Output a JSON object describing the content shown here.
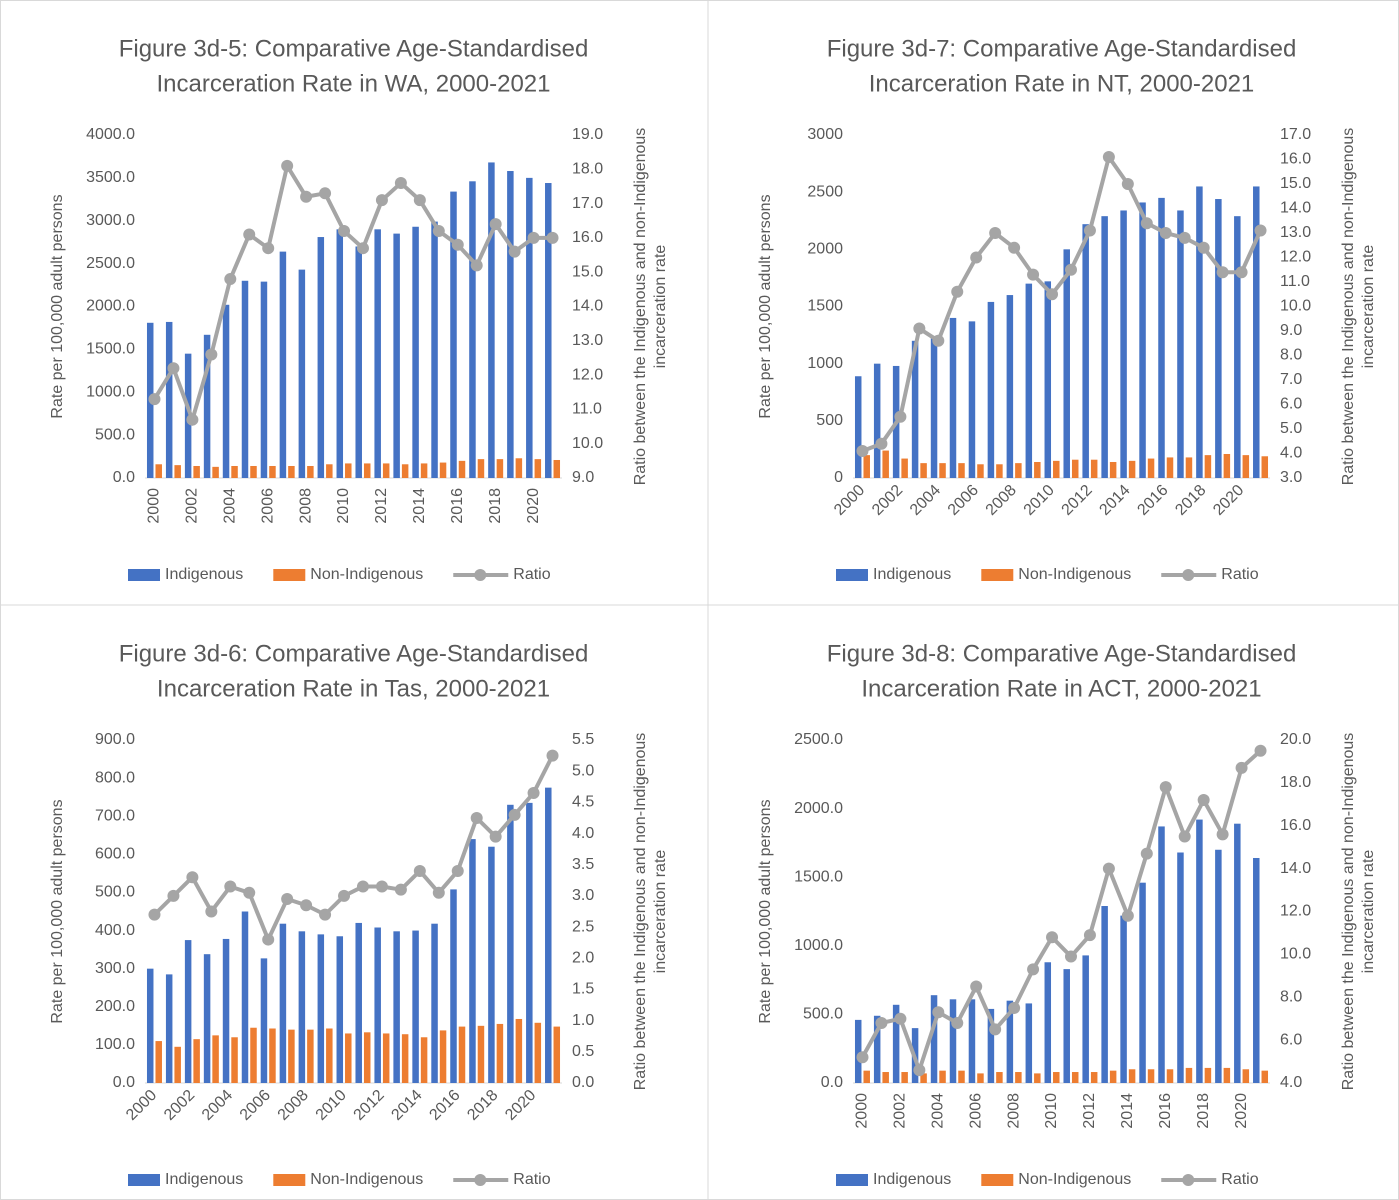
{
  "chart_data": [
    {
      "type": "bar",
      "title": [
        "Figure 3d-5: Comparative Age-Standardised",
        "Incarceration Rate in WA, 2000-2021"
      ],
      "y_label": "Rate per 100,000 adult persons",
      "y2_label": [
        "Ratio between the Indigenous and non-Indigenous",
        "incarceration rate"
      ],
      "categories": [
        "2000",
        null,
        "2002",
        null,
        "2004",
        null,
        "2006",
        null,
        "2008",
        null,
        "2010",
        null,
        "2012",
        null,
        "2014",
        null,
        "2016",
        null,
        "2018",
        null,
        "2020",
        null
      ],
      "series": [
        {
          "name": "Indigenous",
          "color": "#4472c4",
          "values": [
            1810,
            1820,
            1450,
            1670,
            2020,
            2300,
            2290,
            2640,
            2430,
            2810,
            2900,
            2700,
            2900,
            2850,
            2930,
            2990,
            3340,
            3460,
            3680,
            3580,
            3500,
            3440
          ]
        },
        {
          "name": "Non-Indigenous",
          "color": "#ed7d31",
          "values": [
            160,
            150,
            140,
            130,
            140,
            140,
            140,
            140,
            140,
            160,
            170,
            170,
            170,
            160,
            170,
            180,
            200,
            220,
            220,
            230,
            220,
            210
          ]
        },
        {
          "name": "Ratio",
          "color": "#a5a5a5",
          "type": "line",
          "axis": "y2",
          "values": [
            11.3,
            12.2,
            10.7,
            12.6,
            14.8,
            16.1,
            15.7,
            18.1,
            17.2,
            17.3,
            16.2,
            15.7,
            17.1,
            17.6,
            17.1,
            16.2,
            15.8,
            15.2,
            16.4,
            15.6,
            16.0,
            16.0
          ]
        }
      ],
      "ylim": [
        0,
        4000
      ],
      "yticks": [
        {
          "value": 0,
          "label": "0.0"
        },
        {
          "value": 500,
          "label": "500.0"
        },
        {
          "value": 1000,
          "label": "1000.0"
        },
        {
          "value": 1500,
          "label": "1500.0"
        },
        {
          "value": 2000,
          "label": "2000.0"
        },
        {
          "value": 2500,
          "label": "2500.0"
        },
        {
          "value": 3000,
          "label": "3000.0"
        },
        {
          "value": 3500,
          "label": "3500.0"
        },
        {
          "value": 4000,
          "label": "4000.0"
        }
      ],
      "y2lim": [
        9,
        19
      ],
      "y2ticks": [
        {
          "value": 9,
          "label": "9.0"
        },
        {
          "value": 10,
          "label": "10.0"
        },
        {
          "value": 11,
          "label": "11.0"
        },
        {
          "value": 12,
          "label": "12.0"
        },
        {
          "value": 13,
          "label": "13.0"
        },
        {
          "value": 14,
          "label": "14.0"
        },
        {
          "value": 15,
          "label": "15.0"
        },
        {
          "value": 16,
          "label": "16.0"
        },
        {
          "value": 17,
          "label": "17.0"
        },
        {
          "value": 18,
          "label": "18.0"
        },
        {
          "value": 19,
          "label": "19.0"
        }
      ],
      "legend": "bottom"
    },
    {
      "type": "bar",
      "title": [
        "Figure 3d-7: Comparative Age-Standardised",
        "Incarceration Rate in NT, 2000-2021"
      ],
      "y_label": "Rate per 100,000 adult persons",
      "y2_label": [
        "Ratio between the Indigenous and non-Indigenous",
        "incarceration rate"
      ],
      "categories": [
        "2000",
        null,
        "2002",
        null,
        "2004",
        null,
        "2006",
        null,
        "2008",
        null,
        "2010",
        null,
        "2012",
        null,
        "2014",
        null,
        "2016",
        null,
        "2018",
        null,
        "2020",
        null
      ],
      "series": [
        {
          "name": "Indigenous",
          "color": "#4472c4",
          "values": [
            890,
            1000,
            980,
            1200,
            1230,
            1400,
            1370,
            1540,
            1600,
            1700,
            1720,
            2000,
            2220,
            2290,
            2340,
            2410,
            2450,
            2340,
            2550,
            2440,
            2290,
            2550
          ]
        },
        {
          "name": "Non-Indigenous",
          "color": "#ed7d31",
          "values": [
            200,
            240,
            170,
            130,
            130,
            130,
            120,
            120,
            130,
            140,
            150,
            160,
            160,
            140,
            150,
            170,
            180,
            180,
            200,
            210,
            200,
            190
          ]
        },
        {
          "name": "Ratio",
          "color": "#a5a5a5",
          "type": "line",
          "axis": "y2",
          "values": [
            4.1,
            4.4,
            5.5,
            9.1,
            8.6,
            10.6,
            12.0,
            13.0,
            12.4,
            11.3,
            10.5,
            11.5,
            13.1,
            16.1,
            15.0,
            13.4,
            13.0,
            12.8,
            12.4,
            11.4,
            11.4,
            13.1
          ]
        }
      ],
      "ylim": [
        0,
        3000
      ],
      "yticks": [
        0,
        500,
        1000,
        1500,
        2000,
        2500,
        3000
      ],
      "y2lim": [
        3,
        17
      ],
      "y2ticks": [
        {
          "value": 3,
          "label": "3.0"
        },
        {
          "value": 4,
          "label": "4.0"
        },
        {
          "value": 5,
          "label": "5.0"
        },
        {
          "value": 6,
          "label": "6.0"
        },
        {
          "value": 7,
          "label": "7.0"
        },
        {
          "value": 8,
          "label": "8.0"
        },
        {
          "value": 9,
          "label": "9.0"
        },
        {
          "value": 10,
          "label": "10.0"
        },
        {
          "value": 11,
          "label": "11.0"
        },
        {
          "value": 12,
          "label": "12.0"
        },
        {
          "value": 13,
          "label": "13.0"
        },
        {
          "value": 14,
          "label": "14.0"
        },
        {
          "value": 15,
          "label": "15.0"
        },
        {
          "value": 16,
          "label": "16.0"
        },
        {
          "value": 17,
          "label": "17.0"
        }
      ],
      "legend": "bottom"
    },
    {
      "type": "bar",
      "title": [
        "Figure 3d-6: Comparative Age-Standardised",
        "Incarceration Rate in Tas, 2000-2021"
      ],
      "y_label": "Rate per 100,000 adult persons",
      "y2_label": [
        "Ratio between the Indigenous and non-Indigenous",
        "incarceration rate"
      ],
      "categories": [
        "2000",
        null,
        "2002",
        null,
        "2004",
        null,
        "2006",
        null,
        "2008",
        null,
        "2010",
        null,
        "2012",
        null,
        "2014",
        null,
        "2016",
        null,
        "2018",
        null,
        "2020",
        null
      ],
      "series": [
        {
          "name": "Indigenous",
          "color": "#4472c4",
          "values": [
            300,
            285,
            375,
            338,
            378,
            450,
            327,
            418,
            398,
            390,
            385,
            420,
            408,
            398,
            400,
            418,
            508,
            640,
            620,
            730,
            735,
            775
          ]
        },
        {
          "name": "Non-Indigenous",
          "color": "#ed7d31",
          "values": [
            110,
            95,
            115,
            125,
            120,
            145,
            143,
            140,
            140,
            143,
            130,
            133,
            130,
            128,
            120,
            138,
            148,
            150,
            155,
            168,
            158,
            148
          ]
        },
        {
          "name": "Ratio",
          "color": "#a5a5a5",
          "type": "line",
          "axis": "y2",
          "values": [
            2.7,
            3.0,
            3.3,
            2.75,
            3.15,
            3.05,
            2.3,
            2.95,
            2.85,
            2.7,
            3.0,
            3.15,
            3.15,
            3.1,
            3.4,
            3.05,
            3.4,
            4.25,
            3.95,
            4.3,
            4.65,
            5.25
          ]
        }
      ],
      "ylim": [
        0,
        900
      ],
      "yticks": [
        {
          "value": 0,
          "label": "0.0"
        },
        {
          "value": 100,
          "label": "100.0"
        },
        {
          "value": 200,
          "label": "200.0"
        },
        {
          "value": 300,
          "label": "300.0"
        },
        {
          "value": 400,
          "label": "400.0"
        },
        {
          "value": 500,
          "label": "500.0"
        },
        {
          "value": 600,
          "label": "600.0"
        },
        {
          "value": 700,
          "label": "700.0"
        },
        {
          "value": 800,
          "label": "800.0"
        },
        {
          "value": 900,
          "label": "900.0"
        }
      ],
      "y2lim": [
        0,
        5.5
      ],
      "y2ticks": [
        {
          "value": 0,
          "label": "0.0"
        },
        0.5,
        {
          "value": 1,
          "label": "1.0"
        },
        1.5,
        {
          "value": 2,
          "label": "2.0"
        },
        2.5,
        {
          "value": 3,
          "label": "3.0"
        },
        3.5,
        {
          "value": 4,
          "label": "4.0"
        },
        4.5,
        {
          "value": 5,
          "label": "5.0"
        },
        5.5
      ],
      "legend": "bottom"
    },
    {
      "type": "bar",
      "title": [
        "Figure 3d-8: Comparative Age-Standardised",
        "Incarceration Rate in ACT, 2000-2021"
      ],
      "y_label": "Rate per 100,000 adult persons",
      "y2_label": [
        "Ratio between the Indigenous and non-Indigenous",
        "incarceration rate"
      ],
      "categories": [
        "2000",
        null,
        "2002",
        null,
        "2004",
        null,
        "2006",
        null,
        "2008",
        null,
        "2010",
        null,
        "2012",
        null,
        "2014",
        null,
        "2016",
        null,
        "2018",
        null,
        "2020",
        null
      ],
      "series": [
        {
          "name": "Indigenous",
          "color": "#4472c4",
          "values": [
            460,
            490,
            570,
            400,
            640,
            610,
            610,
            540,
            600,
            580,
            880,
            830,
            930,
            1290,
            1220,
            1460,
            1870,
            1680,
            1920,
            1700,
            1890,
            1640
          ]
        },
        {
          "name": "Non-Indigenous",
          "color": "#ed7d31",
          "values": [
            90,
            80,
            80,
            70,
            90,
            90,
            70,
            80,
            80,
            70,
            80,
            80,
            80,
            90,
            100,
            100,
            100,
            110,
            110,
            110,
            100,
            90
          ]
        },
        {
          "name": "Ratio",
          "color": "#a5a5a5",
          "type": "line",
          "axis": "y2",
          "values": [
            5.2,
            6.8,
            7.0,
            4.6,
            7.3,
            6.8,
            8.5,
            6.5,
            7.5,
            9.3,
            10.8,
            9.9,
            10.9,
            14.0,
            11.8,
            14.7,
            17.8,
            15.5,
            17.2,
            15.6,
            18.7,
            19.5
          ]
        }
      ],
      "ylim": [
        0,
        2500
      ],
      "yticks": [
        {
          "value": 0,
          "label": "0.0"
        },
        {
          "value": 500,
          "label": "500.0"
        },
        {
          "value": 1000,
          "label": "1000.0"
        },
        {
          "value": 1500,
          "label": "1500.0"
        },
        {
          "value": 2000,
          "label": "2000.0"
        },
        {
          "value": 2500,
          "label": "2500.0"
        }
      ],
      "y2lim": [
        4,
        20
      ],
      "y2ticks": [
        {
          "value": 4,
          "label": "4.0"
        },
        {
          "value": 6,
          "label": "6.0"
        },
        {
          "value": 8,
          "label": "8.0"
        },
        {
          "value": 10,
          "label": "10.0"
        },
        {
          "value": 12,
          "label": "12.0"
        },
        {
          "value": 14,
          "label": "14.0"
        },
        {
          "value": 16,
          "label": "16.0"
        },
        {
          "value": 18,
          "label": "18.0"
        },
        {
          "value": 20,
          "label": "20.0"
        }
      ],
      "legend": "bottom"
    }
  ]
}
